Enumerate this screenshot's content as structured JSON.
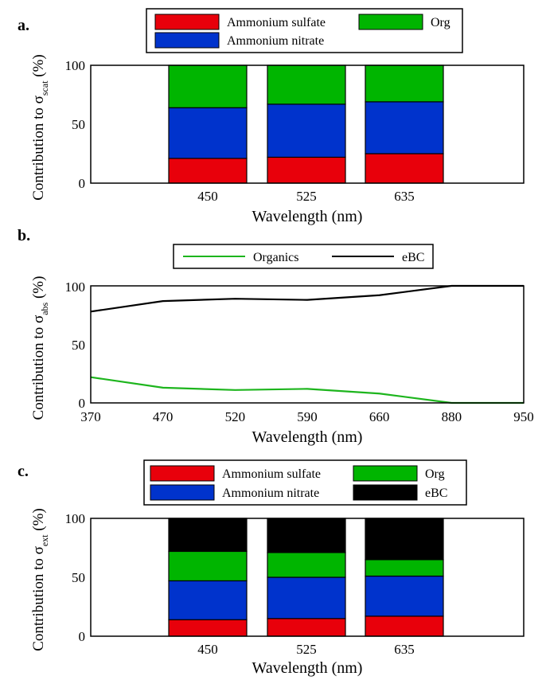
{
  "chart_data": [
    {
      "panel_label": "a.",
      "type": "bar",
      "stacked": true,
      "categories": [
        "450",
        "525",
        "635"
      ],
      "xlabel": "Wavelength (nm)",
      "ylabel_prefix": "Contribution to σ",
      "ylabel_sub": "scat",
      "ylabel_suffix": " (%)",
      "yticks": [
        "0",
        "50",
        "100"
      ],
      "ylim": [
        0,
        100
      ],
      "series": [
        {
          "name": "Ammonium sulfate",
          "color": "#e8000b",
          "values": [
            21,
            22,
            25
          ]
        },
        {
          "name": "Ammonium nitrate",
          "color": "#0033cc",
          "values": [
            43,
            45,
            44
          ]
        },
        {
          "name": "Org",
          "color": "#00b500",
          "values": [
            36,
            33,
            31
          ]
        }
      ]
    },
    {
      "panel_label": "b.",
      "type": "line",
      "x": [
        "370",
        "470",
        "520",
        "590",
        "660",
        "880",
        "950"
      ],
      "xlabel": "Wavelength (nm)",
      "ylabel_prefix": "Contribution to σ",
      "ylabel_sub": "abs",
      "ylabel_suffix": " (%)",
      "yticks": [
        "0",
        "50",
        "100"
      ],
      "ylim": [
        0,
        100
      ],
      "series": [
        {
          "name": "Organics",
          "color": "#1db51d",
          "values": [
            22,
            13,
            11,
            12,
            8,
            0,
            0
          ]
        },
        {
          "name": "eBC",
          "color": "#000000",
          "values": [
            78,
            87,
            89,
            88,
            92,
            100,
            100
          ]
        }
      ]
    },
    {
      "panel_label": "c.",
      "type": "bar",
      "stacked": true,
      "categories": [
        "450",
        "525",
        "635"
      ],
      "xlabel": "Wavelength (nm)",
      "ylabel_prefix": "Contribution to σ",
      "ylabel_sub": "ext",
      "ylabel_suffix": " (%)",
      "yticks": [
        "0",
        "50",
        "100"
      ],
      "ylim": [
        0,
        100
      ],
      "series": [
        {
          "name": "Ammonium sulfate",
          "color": "#e8000b",
          "values": [
            14,
            15,
            17
          ]
        },
        {
          "name": "Ammonium nitrate",
          "color": "#0033cc",
          "values": [
            33,
            35,
            34
          ]
        },
        {
          "name": "Org",
          "color": "#00b500",
          "values": [
            25,
            21,
            14
          ]
        },
        {
          "name": "eBC",
          "color": "#000000",
          "values": [
            28,
            29,
            35
          ]
        }
      ]
    }
  ]
}
